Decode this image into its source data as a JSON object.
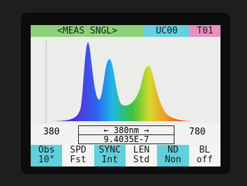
{
  "header": {
    "mode": "<MEAS SNGL>",
    "user": "UC00",
    "tab": "T01"
  },
  "axis": {
    "min": "380",
    "max": "780"
  },
  "cursor": {
    "wavelength": "← 380nm →",
    "value": "9.4035E-7"
  },
  "menu": [
    {
      "label": "Obs",
      "value": "10°"
    },
    {
      "label": "SPD",
      "value": "Fst"
    },
    {
      "label": "SYNC",
      "value": "Int"
    },
    {
      "label": "LEN",
      "value": "Std"
    },
    {
      "label": "ND",
      "value": "Non"
    },
    {
      "label": "BL",
      "value": "off"
    }
  ]
}
